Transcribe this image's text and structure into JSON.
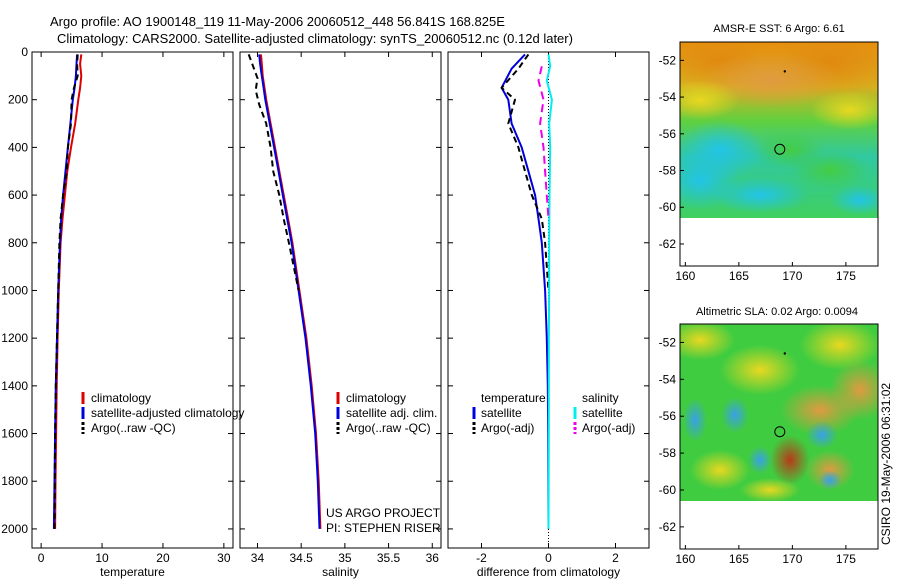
{
  "header": {
    "line1": "Argo profile: AO 1900148_119 11-May-2006 20060512_448 56.841S 168.825E",
    "line2": "Climatology: CARS2000. Satellite-adjusted climatology: synTS_20060512.nc (0.12d later)"
  },
  "colors": {
    "red": "#dd0000",
    "blue": "#0000dd",
    "black": "#000000",
    "cyan": "#00eeee",
    "magenta": "#ee00ee"
  },
  "chart_data": [
    {
      "type": "line",
      "name": "temperature-profile",
      "xlabel": "temperature",
      "ylabel": "",
      "xlim": [
        -1.5,
        31.5
      ],
      "ylim": [
        2080,
        0
      ],
      "xticks": [
        0,
        10,
        20,
        30
      ],
      "yticks": [
        0,
        200,
        400,
        600,
        800,
        1000,
        1200,
        1400,
        1600,
        1800,
        2000
      ],
      "legend": [
        "climatology",
        "satellite-adjusted climatology",
        "Argo(..raw -QC)"
      ],
      "series": [
        {
          "name": "climatology",
          "color": "red",
          "dash": "",
          "x": [
            6.6,
            6.4,
            6.6,
            6.4,
            6.1,
            5.6,
            4.9,
            4.3,
            3.9,
            3.5,
            3.2,
            2.9,
            2.7,
            2.55,
            2.45,
            2.35,
            2.3
          ],
          "y": [
            10,
            50,
            100,
            150,
            200,
            300,
            400,
            500,
            600,
            700,
            800,
            1000,
            1200,
            1400,
            1600,
            1800,
            2000
          ]
        },
        {
          "name": "satellite-adjusted climatology",
          "color": "blue",
          "dash": "",
          "x": [
            5.9,
            5.8,
            5.7,
            5.5,
            5.2,
            4.8,
            4.4,
            4.0,
            3.6,
            3.3,
            3.1,
            2.8,
            2.6,
            2.4,
            2.3,
            2.2,
            2.1
          ],
          "y": [
            10,
            50,
            100,
            150,
            200,
            300,
            400,
            500,
            600,
            700,
            800,
            1000,
            1200,
            1400,
            1600,
            1800,
            2000
          ]
        },
        {
          "name": "Argo(..raw -QC)",
          "color": "black",
          "dash": "6,4",
          "x": [
            6.0,
            5.9,
            6.0,
            5.4,
            5.0,
            4.9,
            4.4,
            4.2,
            3.6,
            3.2,
            3.0,
            2.8,
            2.6,
            2.4,
            2.3,
            2.25,
            2.2
          ],
          "y": [
            10,
            50,
            100,
            150,
            200,
            300,
            400,
            500,
            600,
            700,
            800,
            1000,
            1200,
            1400,
            1600,
            1800,
            2000
          ]
        }
      ]
    },
    {
      "type": "line",
      "name": "salinity-profile",
      "xlabel": "salinity",
      "ylabel": "",
      "xlim": [
        33.8,
        36.1
      ],
      "ylim": [
        2080,
        0
      ],
      "xticks": [
        34,
        34.5,
        35,
        35.5,
        36
      ],
      "xticklabels": [
        "34",
        "34.5",
        "35",
        "35.5",
        "36"
      ],
      "legend": [
        "climatology",
        "satellite adj. clim.",
        "Argo(..raw -QC)"
      ],
      "annotations": [
        "US ARGO PROJECT",
        "PI: STEPHEN RISER"
      ],
      "series": [
        {
          "name": "climatology",
          "color": "red",
          "dash": "",
          "x": [
            34.04,
            34.05,
            34.06,
            34.08,
            34.1,
            34.15,
            34.2,
            34.25,
            34.3,
            34.35,
            34.4,
            34.48,
            34.56,
            34.62,
            34.67,
            34.7,
            34.72
          ],
          "y": [
            10,
            50,
            100,
            150,
            200,
            300,
            400,
            500,
            600,
            700,
            800,
            1000,
            1200,
            1400,
            1600,
            1800,
            2000
          ]
        },
        {
          "name": "satellite adj. clim.",
          "color": "blue",
          "dash": "",
          "x": [
            34.02,
            34.03,
            34.05,
            34.07,
            34.09,
            34.14,
            34.19,
            34.24,
            34.29,
            34.34,
            34.39,
            34.47,
            34.55,
            34.61,
            34.66,
            34.69,
            34.71
          ],
          "y": [
            10,
            50,
            100,
            150,
            200,
            300,
            400,
            500,
            600,
            700,
            800,
            1000,
            1200,
            1400,
            1600,
            1800,
            2000
          ]
        },
        {
          "name": "Argo(..raw -QC)",
          "color": "black",
          "dash": "6,4",
          "x": [
            33.9,
            33.95,
            34.0,
            33.98,
            34.02,
            34.1,
            34.15,
            34.18,
            34.25,
            34.3,
            34.36,
            34.47
          ],
          "y": [
            10,
            60,
            110,
            160,
            220,
            300,
            400,
            500,
            600,
            700,
            800,
            1000
          ]
        }
      ]
    },
    {
      "type": "line",
      "name": "difference-profile",
      "xlabel": "difference from climatology",
      "ylabel": "",
      "xlim": [
        -3,
        3
      ],
      "ylim": [
        2080,
        0
      ],
      "xticks": [
        -2,
        0,
        2
      ],
      "legend_headers": [
        "temperature",
        "salinity"
      ],
      "legend": [
        "satellite",
        "Argo(-adj)",
        "satellite",
        "Argo(-adj)"
      ],
      "series": [
        {
          "name": "temperature satellite",
          "color": "blue",
          "dash": "",
          "x": [
            -0.7,
            -1.1,
            -1.4,
            -1.2,
            -1.1,
            -0.8,
            -0.6,
            -0.4,
            -0.3,
            -0.2,
            -0.1,
            -0.05,
            -0.02,
            -0.01,
            0
          ],
          "y": [
            10,
            70,
            150,
            200,
            300,
            400,
            500,
            600,
            700,
            800,
            1000,
            1200,
            1400,
            1600,
            2000
          ]
        },
        {
          "name": "temperature Argo(-adj)",
          "color": "black",
          "dash": "6,4",
          "x": [
            -0.6,
            -0.9,
            -1.4,
            -1.0,
            -1.2,
            -0.9,
            -0.7,
            -0.5,
            -0.2,
            -0.1,
            -0.05,
            0
          ],
          "y": [
            10,
            70,
            150,
            200,
            300,
            400,
            500,
            600,
            700,
            800,
            900,
            1000
          ]
        },
        {
          "name": "salinity satellite",
          "color": "cyan",
          "dash": "",
          "x": [
            0.0,
            0.05,
            -0.05,
            0.1,
            0.02,
            0.05,
            0.03,
            0.02,
            0.02,
            0.01,
            0.01,
            0.0
          ],
          "y": [
            10,
            60,
            120,
            200,
            300,
            400,
            600,
            800,
            1000,
            1200,
            1600,
            2000
          ]
        },
        {
          "name": "salinity Argo(-adj)",
          "color": "magenta",
          "dash": "8,5",
          "x": [
            -0.2,
            -0.3,
            -0.15,
            -0.25,
            -0.15,
            -0.1,
            -0.05,
            0.0
          ],
          "y": [
            60,
            120,
            200,
            300,
            400,
            500,
            600,
            700
          ]
        }
      ]
    },
    {
      "type": "heatmap",
      "name": "sst-map",
      "title": "AMSR-E SST: 6 Argo: 6.61",
      "xlim": [
        159.5,
        178
      ],
      "ylim": [
        -63.2,
        -51
      ],
      "xticks": [
        160,
        165,
        170,
        175
      ],
      "yticks": [
        -52,
        -54,
        -56,
        -58,
        -60,
        -62
      ],
      "float_position": [
        168.825,
        -56.841
      ]
    },
    {
      "type": "heatmap",
      "name": "sla-map",
      "title": "Altimetric SLA: 0.02 Argo: 0.0094",
      "xlim": [
        159.5,
        178
      ],
      "ylim": [
        -63.2,
        -51
      ],
      "xticks": [
        160,
        165,
        170,
        175
      ],
      "yticks": [
        -52,
        -54,
        -56,
        -58,
        -60,
        -62
      ],
      "float_position": [
        168.825,
        -56.841
      ]
    }
  ],
  "footer": {
    "credit": "CSIRO 19-May-2006 06:31:02"
  }
}
